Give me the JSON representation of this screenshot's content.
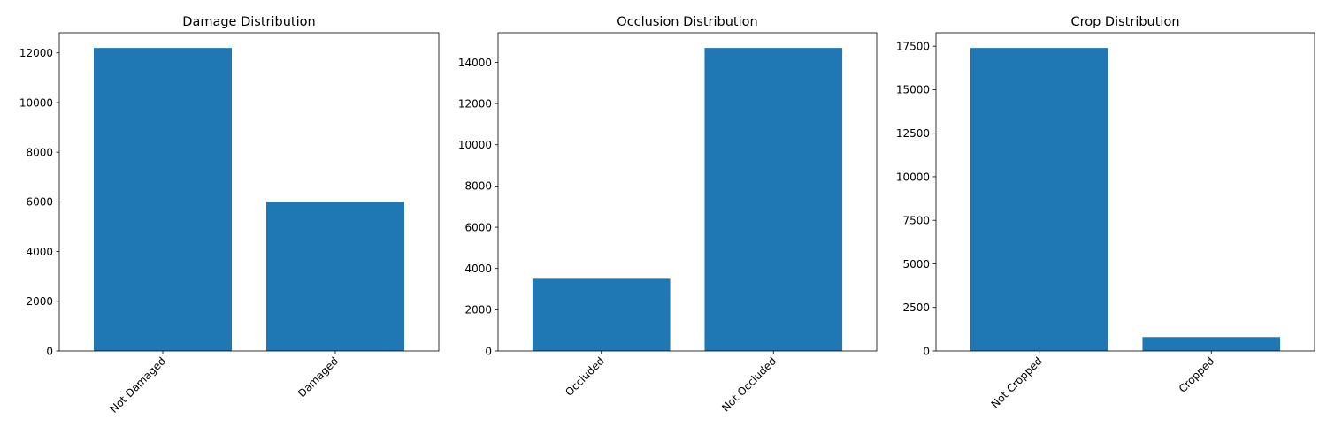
{
  "chart_data": [
    {
      "type": "bar",
      "title": "Damage Distribution",
      "xlabel": "",
      "ylabel": "",
      "categories": [
        "Not Damaged",
        "Damaged"
      ],
      "values": [
        12200,
        6000
      ],
      "ylim": [
        0,
        12810
      ],
      "yticks": [
        0,
        2000,
        4000,
        6000,
        8000,
        10000,
        12000
      ],
      "ytick_labels": [
        "0",
        "2000",
        "4000",
        "6000",
        "8000",
        "10000",
        "12000"
      ],
      "grid": false,
      "legend": "none",
      "bar_color": "#1f77b4"
    },
    {
      "type": "bar",
      "title": "Occlusion Distribution",
      "xlabel": "",
      "ylabel": "",
      "categories": [
        "Occluded",
        "Not Occluded"
      ],
      "values": [
        3500,
        14700
      ],
      "ylim": [
        0,
        15435
      ],
      "yticks": [
        0,
        2000,
        4000,
        6000,
        8000,
        10000,
        12000,
        14000
      ],
      "ytick_labels": [
        "0",
        "2000",
        "4000",
        "6000",
        "8000",
        "10000",
        "12000",
        "14000"
      ],
      "grid": false,
      "legend": "none",
      "bar_color": "#1f77b4"
    },
    {
      "type": "bar",
      "title": "Crop Distribution",
      "xlabel": "",
      "ylabel": "",
      "categories": [
        "Not Cropped",
        "Cropped"
      ],
      "values": [
        17400,
        800
      ],
      "ylim": [
        0,
        18270
      ],
      "yticks": [
        0,
        2500,
        5000,
        7500,
        10000,
        12500,
        15000,
        17500
      ],
      "ytick_labels": [
        "0",
        "2500",
        "5000",
        "7500",
        "10000",
        "12500",
        "15000",
        "17500"
      ],
      "grid": false,
      "legend": "none",
      "bar_color": "#1f77b4"
    }
  ]
}
